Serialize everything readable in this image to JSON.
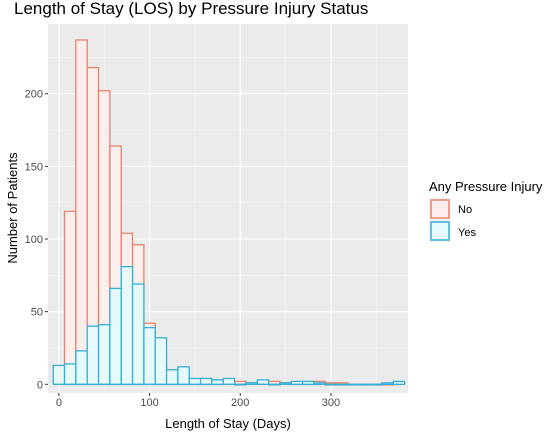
{
  "chart_data": {
    "type": "histogram",
    "title": "Length of Stay (LOS) by Pressure Injury Status",
    "xlabel": "Length of Stay (Days)",
    "ylabel": "Number of Patients",
    "xlim": [
      -12,
      385
    ],
    "ylim": [
      -6,
      248
    ],
    "x_ticks": [
      0,
      100,
      200,
      300
    ],
    "y_ticks": [
      0,
      50,
      100,
      150,
      200
    ],
    "x_tick_labels": [
      "0",
      "100",
      "200",
      "300"
    ],
    "y_tick_labels": [
      "0",
      "50",
      "100",
      "150",
      "200"
    ],
    "bin_width": 12.5,
    "bin_centers": [
      0,
      12.5,
      25,
      37.5,
      50,
      62.5,
      75,
      87.5,
      100,
      112.5,
      125,
      137.5,
      150,
      162.5,
      175,
      187.5,
      200,
      212.5,
      225,
      237.5,
      250,
      262.5,
      275,
      287.5,
      300,
      312.5,
      325,
      337.5,
      350,
      362.5,
      375
    ],
    "grid": true,
    "legend": {
      "title": "Any Pressure Injury",
      "position": "right"
    },
    "series": [
      {
        "name": "No",
        "color": "#E8836E",
        "fill": "#FBEEEC",
        "values": [
          6,
          119,
          237,
          218,
          202,
          164,
          104,
          96,
          42,
          15,
          10,
          7,
          3,
          4,
          3,
          2,
          2,
          1,
          1,
          2,
          1,
          1,
          1,
          2,
          1,
          1,
          0,
          0,
          0,
          0,
          1
        ]
      },
      {
        "name": "Yes",
        "color": "#35AFD6",
        "fill": "#E6FAFB",
        "values": [
          13,
          14,
          23,
          40,
          41,
          66,
          81,
          69,
          39,
          32,
          10,
          12,
          4,
          4,
          3,
          4,
          0,
          1,
          3,
          0,
          1,
          2,
          2,
          1,
          0,
          0,
          0,
          0,
          0,
          1,
          2
        ]
      }
    ]
  }
}
